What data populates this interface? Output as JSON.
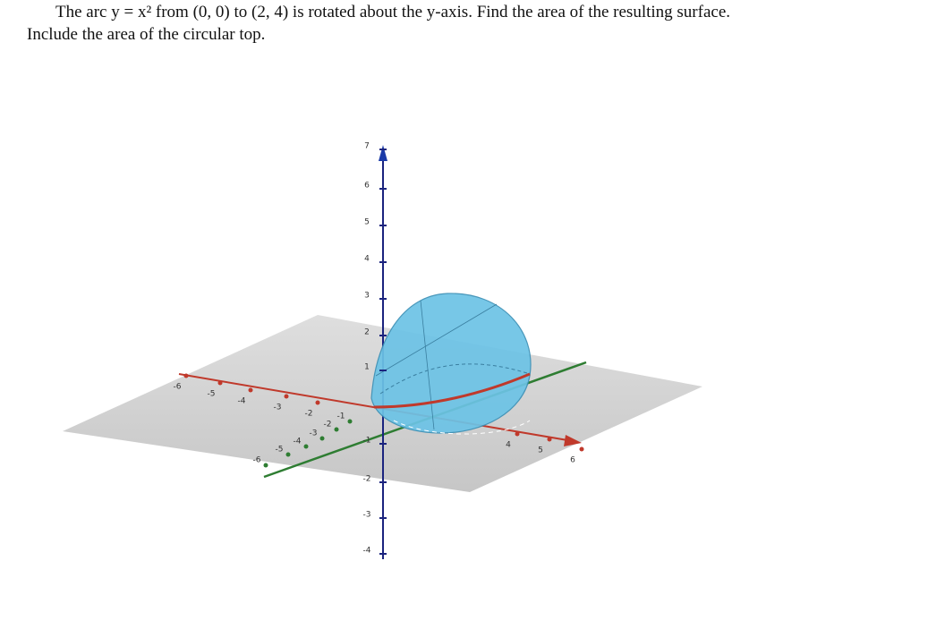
{
  "problem": {
    "lines": [
      "The arc y = x² from (0, 0) to (2, 4) is rotated about the y-axis. Find the area of the resulting surface.",
      "Include the area of the circular top."
    ]
  },
  "figure": {
    "vertical_axis_labels": [
      "7",
      "6",
      "5",
      "4",
      "3",
      "2",
      "1",
      "-1",
      "-2",
      "-3",
      "-4"
    ],
    "red_axis_labels": [
      "-6",
      "-5",
      "-4",
      "-3",
      "-2",
      "4",
      "5",
      "6"
    ],
    "green_axis_labels": [
      "-6",
      "-5",
      "-4",
      "-3",
      "-2",
      "-1"
    ]
  }
}
